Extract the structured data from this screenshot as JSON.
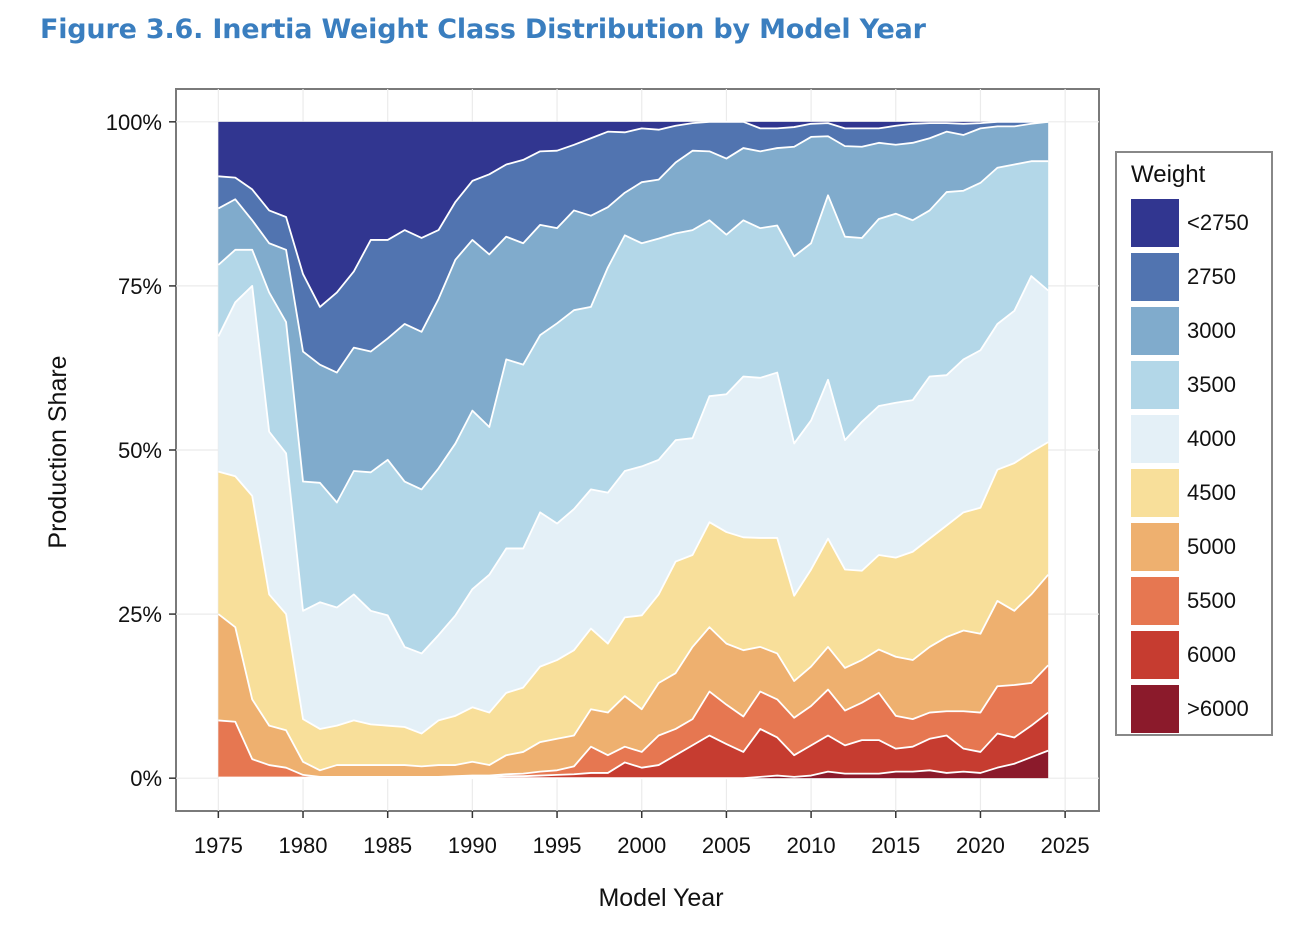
{
  "figure_title": "Figure 3.6. Inertia Weight Class Distribution by Model Year",
  "chart_data": {
    "type": "area",
    "stacked": true,
    "normalized": true,
    "xlabel": "Model Year",
    "ylabel": "Production Share",
    "xlim": [
      1972.5,
      2027
    ],
    "ylim": [
      -0.05,
      1.05
    ],
    "x_ticks": [
      1975,
      1980,
      1985,
      1990,
      1995,
      2000,
      2005,
      2010,
      2015,
      2020,
      2025
    ],
    "y_ticks": [
      0,
      0.25,
      0.5,
      0.75,
      1.0
    ],
    "y_tick_labels": [
      "0%",
      "25%",
      "50%",
      "75%",
      "100%"
    ],
    "grid": true,
    "legend_title": "Weight",
    "legend_position": "right",
    "x": [
      1975,
      1976,
      1977,
      1978,
      1979,
      1980,
      1981,
      1982,
      1983,
      1984,
      1985,
      1986,
      1987,
      1988,
      1989,
      1990,
      1991,
      1992,
      1993,
      1994,
      1995,
      1996,
      1997,
      1998,
      1999,
      2000,
      2001,
      2002,
      2003,
      2004,
      2005,
      2006,
      2007,
      2008,
      2009,
      2010,
      2011,
      2012,
      2013,
      2014,
      2015,
      2016,
      2017,
      2018,
      2019,
      2020,
      2021,
      2022,
      2023,
      2024
    ],
    "series": [
      {
        "name": ">6000",
        "color": "#8b1a2b",
        "cumulative_top": [
          0,
          0,
          0,
          0,
          0,
          0,
          0,
          0,
          0,
          0,
          0,
          0,
          0,
          0,
          0,
          0,
          0,
          0,
          0,
          0,
          0,
          0,
          0,
          0,
          0,
          0,
          0,
          0,
          0,
          0,
          0,
          0,
          0.002,
          0.004,
          0.002,
          0.004,
          0.01,
          0.007,
          0.007,
          0.007,
          0.01,
          0.01,
          0.012,
          0.008,
          0.01,
          0.008,
          0.016,
          0.022,
          0.032,
          0.042
        ]
      },
      {
        "name": "6000",
        "color": "#c63c30",
        "cumulative_top": [
          0.001,
          0.001,
          0.001,
          0.001,
          0.001,
          0.001,
          0.001,
          0.001,
          0.001,
          0.001,
          0.001,
          0.001,
          0.001,
          0.001,
          0.002,
          0.002,
          0.002,
          0.003,
          0.003,
          0.004,
          0.005,
          0.006,
          0.008,
          0.008,
          0.024,
          0.016,
          0.02,
          0.035,
          0.05,
          0.065,
          0.052,
          0.04,
          0.075,
          0.062,
          0.035,
          0.05,
          0.065,
          0.05,
          0.058,
          0.058,
          0.045,
          0.048,
          0.06,
          0.065,
          0.045,
          0.04,
          0.068,
          0.062,
          0.08,
          0.1
        ]
      },
      {
        "name": "5500",
        "color": "#e67751",
        "cumulative_top": [
          0.088,
          0.086,
          0.029,
          0.02,
          0.016,
          0.005,
          0.002,
          0.002,
          0.002,
          0.002,
          0.002,
          0.002,
          0.002,
          0.002,
          0.003,
          0.004,
          0.004,
          0.006,
          0.007,
          0.01,
          0.012,
          0.018,
          0.048,
          0.035,
          0.048,
          0.04,
          0.065,
          0.075,
          0.09,
          0.132,
          0.112,
          0.094,
          0.132,
          0.12,
          0.092,
          0.11,
          0.135,
          0.103,
          0.115,
          0.13,
          0.095,
          0.09,
          0.1,
          0.102,
          0.102,
          0.1,
          0.14,
          0.142,
          0.145,
          0.172
        ]
      },
      {
        "name": "5000",
        "color": "#eeb06f",
        "cumulative_top": [
          0.25,
          0.23,
          0.12,
          0.08,
          0.073,
          0.025,
          0.012,
          0.02,
          0.02,
          0.02,
          0.02,
          0.02,
          0.018,
          0.02,
          0.02,
          0.025,
          0.02,
          0.035,
          0.04,
          0.055,
          0.06,
          0.065,
          0.105,
          0.1,
          0.125,
          0.105,
          0.145,
          0.16,
          0.2,
          0.23,
          0.205,
          0.195,
          0.2,
          0.19,
          0.148,
          0.17,
          0.2,
          0.168,
          0.18,
          0.196,
          0.185,
          0.18,
          0.2,
          0.215,
          0.225,
          0.22,
          0.27,
          0.255,
          0.28,
          0.31
        ]
      },
      {
        "name": "4500",
        "color": "#f8df9a",
        "cumulative_top": [
          0.467,
          0.46,
          0.43,
          0.28,
          0.25,
          0.09,
          0.075,
          0.08,
          0.088,
          0.082,
          0.08,
          0.078,
          0.068,
          0.088,
          0.095,
          0.108,
          0.1,
          0.13,
          0.138,
          0.17,
          0.18,
          0.195,
          0.228,
          0.205,
          0.245,
          0.248,
          0.28,
          0.33,
          0.34,
          0.39,
          0.375,
          0.367,
          0.366,
          0.366,
          0.278,
          0.318,
          0.365,
          0.318,
          0.316,
          0.34,
          0.336,
          0.345,
          0.365,
          0.385,
          0.405,
          0.412,
          0.47,
          0.48,
          0.497,
          0.512
        ]
      },
      {
        "name": "4000",
        "color": "#e4f0f7",
        "cumulative_top": [
          0.673,
          0.725,
          0.75,
          0.528,
          0.495,
          0.255,
          0.268,
          0.26,
          0.28,
          0.255,
          0.248,
          0.2,
          0.19,
          0.218,
          0.248,
          0.288,
          0.31,
          0.35,
          0.35,
          0.405,
          0.388,
          0.41,
          0.44,
          0.435,
          0.468,
          0.475,
          0.485,
          0.515,
          0.518,
          0.582,
          0.585,
          0.612,
          0.61,
          0.618,
          0.51,
          0.545,
          0.607,
          0.515,
          0.543,
          0.567,
          0.572,
          0.576,
          0.612,
          0.614,
          0.638,
          0.652,
          0.692,
          0.712,
          0.765,
          0.743
        ]
      },
      {
        "name": "3500",
        "color": "#b3d7e8",
        "cumulative_top": [
          0.782,
          0.805,
          0.805,
          0.74,
          0.695,
          0.452,
          0.45,
          0.42,
          0.468,
          0.466,
          0.485,
          0.452,
          0.44,
          0.472,
          0.51,
          0.56,
          0.535,
          0.638,
          0.63,
          0.675,
          0.693,
          0.713,
          0.718,
          0.778,
          0.827,
          0.815,
          0.822,
          0.83,
          0.835,
          0.85,
          0.828,
          0.85,
          0.838,
          0.842,
          0.795,
          0.815,
          0.888,
          0.825,
          0.823,
          0.852,
          0.86,
          0.85,
          0.865,
          0.893,
          0.895,
          0.907,
          0.93,
          0.935,
          0.94,
          0.94
        ]
      },
      {
        "name": "3000",
        "color": "#80abcc",
        "cumulative_top": [
          0.868,
          0.882,
          0.85,
          0.815,
          0.805,
          0.65,
          0.63,
          0.618,
          0.656,
          0.65,
          0.67,
          0.692,
          0.68,
          0.73,
          0.79,
          0.82,
          0.798,
          0.825,
          0.815,
          0.843,
          0.838,
          0.865,
          0.857,
          0.87,
          0.892,
          0.908,
          0.912,
          0.938,
          0.956,
          0.955,
          0.944,
          0.96,
          0.955,
          0.96,
          0.962,
          0.977,
          0.978,
          0.963,
          0.962,
          0.968,
          0.965,
          0.968,
          0.975,
          0.985,
          0.98,
          0.99,
          0.993,
          0.993,
          0.997,
          1.0
        ]
      },
      {
        "name": "2750",
        "color": "#5174b0",
        "cumulative_top": [
          0.917,
          0.915,
          0.897,
          0.865,
          0.855,
          0.768,
          0.718,
          0.74,
          0.772,
          0.82,
          0.82,
          0.835,
          0.823,
          0.835,
          0.878,
          0.91,
          0.92,
          0.935,
          0.942,
          0.955,
          0.956,
          0.965,
          0.975,
          0.985,
          0.984,
          0.99,
          0.988,
          0.994,
          0.998,
          1.0,
          1.0,
          1.0,
          0.99,
          0.99,
          0.992,
          0.997,
          0.998,
          0.99,
          0.99,
          0.99,
          0.994,
          0.997,
          0.998,
          0.998,
          0.997,
          0.998,
          1.0,
          1.0,
          1.0,
          1.0
        ]
      },
      {
        "name": "<2750",
        "color": "#313690",
        "cumulative_top": [
          1,
          1,
          1,
          1,
          1,
          1,
          1,
          1,
          1,
          1,
          1,
          1,
          1,
          1,
          1,
          1,
          1,
          1,
          1,
          1,
          1,
          1,
          1,
          1,
          1,
          1,
          1,
          1,
          1,
          1,
          1,
          1,
          1,
          1,
          1,
          1,
          1,
          1,
          1,
          1,
          1,
          1,
          1,
          1,
          1,
          1,
          1,
          1,
          1,
          1
        ]
      }
    ]
  }
}
